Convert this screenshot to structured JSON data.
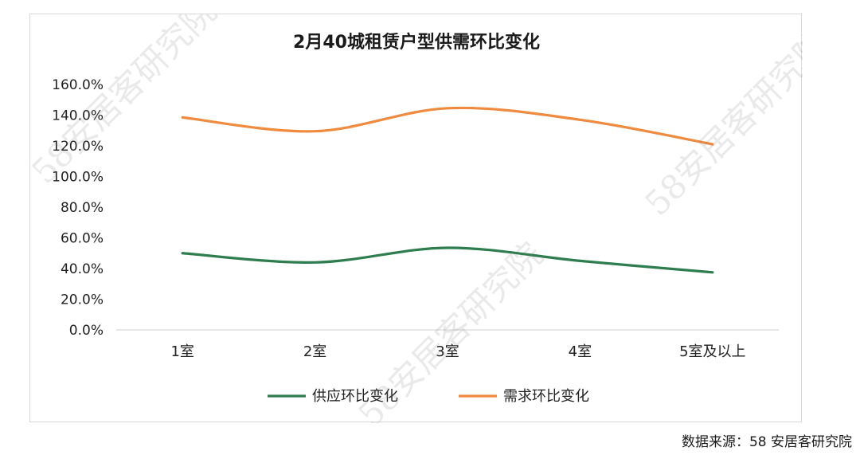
{
  "chart_data": {
    "type": "line",
    "title": "2月40城租赁户型供需环比变化",
    "categories": [
      "1室",
      "2室",
      "3室",
      "4室",
      "5室及以上"
    ],
    "y_ticks": [
      "0.0%",
      "20.0%",
      "40.0%",
      "60.0%",
      "80.0%",
      "100.0%",
      "120.0%",
      "140.0%",
      "160.0%"
    ],
    "ylim": [
      0,
      160
    ],
    "grid": "baseline-only",
    "legend_position": "bottom",
    "series": [
      {
        "name": "供应环比变化",
        "color": "#2e7d4f",
        "values": [
          50.0,
          44.0,
          53.5,
          45.0,
          37.5
        ]
      },
      {
        "name": "需求环比变化",
        "color": "#f08a3e",
        "values": [
          138.5,
          129.5,
          144.5,
          137.0,
          121.0
        ]
      }
    ]
  },
  "watermark": "58安居客研究院",
  "source": "数据来源：58 安居客研究院"
}
